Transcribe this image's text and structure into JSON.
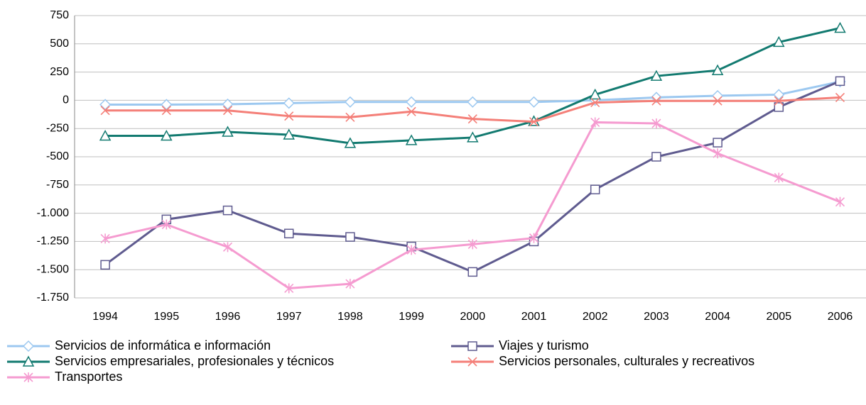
{
  "chart_data": {
    "type": "line",
    "categories": [
      "1994",
      "1995",
      "1996",
      "1997",
      "1998",
      "1999",
      "2000",
      "2001",
      "2002",
      "2003",
      "2004",
      "2005",
      "2006"
    ],
    "ylim": [
      -1750,
      750
    ],
    "yticks": [
      {
        "value": -1750,
        "label": "-1.750"
      },
      {
        "value": -1500,
        "label": "-1.500"
      },
      {
        "value": -1250,
        "label": "-1.250"
      },
      {
        "value": -1000,
        "label": "-1.000"
      },
      -750,
      -500,
      -250,
      0,
      250,
      500,
      750
    ],
    "grid": true,
    "legend": "bottom",
    "series": [
      {
        "name": "Servicios de  informática e información",
        "color": "#9cc8f0",
        "marker": "diamond",
        "values": [
          -38,
          -38,
          -35,
          -25,
          -15,
          -15,
          -15,
          -15,
          0,
          25,
          40,
          50,
          165
        ]
      },
      {
        "name": "Viajes y turismo",
        "color": "#5f5b8f",
        "marker": "square",
        "values": [
          -1457,
          -1055,
          -975,
          -1180,
          -1210,
          -1295,
          -1520,
          -1250,
          -790,
          -500,
          -375,
          -60,
          170
        ]
      },
      {
        "name": "Servicios empresariales, profesionales y técnicos",
        "color": "#127a70",
        "marker": "triangle",
        "values": [
          -315,
          -315,
          -280,
          -305,
          -380,
          -355,
          -330,
          -185,
          50,
          215,
          265,
          515,
          640
        ]
      },
      {
        "name": "Servicios personales, culturales y recreativos",
        "color": "#f47f78",
        "marker": "x",
        "values": [
          -90,
          -90,
          -90,
          -140,
          -150,
          -100,
          -165,
          -190,
          -20,
          -5,
          -5,
          -5,
          25
        ]
      },
      {
        "name": "Transportes",
        "color": "#f59bd0",
        "marker": "asterisk",
        "values": [
          -1225,
          -1100,
          -1300,
          -1665,
          -1625,
          -1325,
          -1275,
          -1220,
          -195,
          -205,
          -470,
          -685,
          -900
        ]
      }
    ]
  }
}
